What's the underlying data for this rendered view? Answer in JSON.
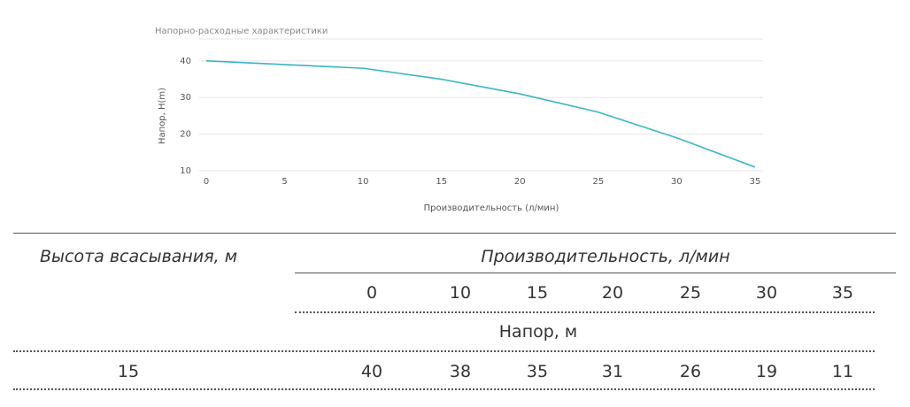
{
  "chart_data": {
    "type": "line",
    "title": "Напорно-расходные характеристики",
    "x_label": "Производительность (л/мин)",
    "y_label": "Напор, H(m)",
    "x": [
      0,
      10,
      15,
      20,
      25,
      30,
      35
    ],
    "values": [
      40,
      38,
      35,
      31,
      26,
      19,
      11
    ],
    "color": "#3ab4c6",
    "xlim": [
      0,
      35
    ],
    "ylim": [
      10,
      46
    ],
    "xticks": [
      0,
      5,
      10,
      15,
      20,
      25,
      30,
      35
    ],
    "yticks": [
      10,
      20,
      30,
      40
    ],
    "grid": true
  },
  "table": {
    "headers": [
      "Высота всасывания, м",
      "Производительность, л/мин"
    ],
    "flows": [
      0,
      10,
      15,
      20,
      25,
      30,
      35
    ],
    "subheader": "Напор, м",
    "rows": [
      [
        15,
        40,
        38,
        35,
        31,
        26,
        19,
        11
      ]
    ]
  }
}
